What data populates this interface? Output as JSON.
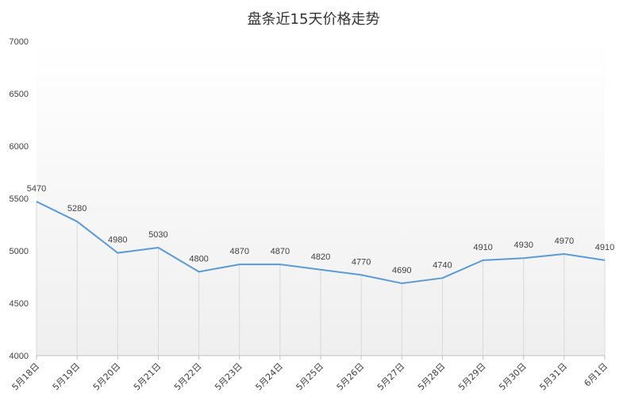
{
  "chart_data": {
    "type": "line",
    "title": "盘条近15天价格走势",
    "xlabel": "",
    "ylabel": "",
    "categories": [
      "5月18日",
      "5月19日",
      "5月20日",
      "5月21日",
      "5月22日",
      "5月23日",
      "5月24日",
      "5月25日",
      "5月26日",
      "5月27日",
      "5月28日",
      "5月29日",
      "5月30日",
      "5月31日",
      "6月1日"
    ],
    "series": [
      {
        "values": [
          5470,
          5280,
          4980,
          5030,
          4800,
          4870,
          4870,
          4820,
          4770,
          4690,
          4740,
          4910,
          4930,
          4970,
          4910
        ]
      }
    ],
    "ylim": [
      4000,
      7000
    ],
    "yticks": [
      "4000",
      "4500",
      "5000",
      "5500",
      "6000",
      "6500",
      "7000"
    ],
    "data_labels": [
      "5470",
      "5280",
      "4980",
      "5030",
      "4800",
      "4870",
      "4870",
      "4820",
      "4770",
      "4690",
      "4740",
      "4910",
      "4930",
      "4970",
      "4910"
    ],
    "grid": "vertical drop lines only",
    "legend": "none",
    "colors": {
      "line": "#5b9bd5",
      "drop_line": "#d9d9d9",
      "axis": "#bfbfbf",
      "text": "#404040",
      "fill_top": "#ffffff",
      "fill_bottom": "#efefef"
    }
  }
}
